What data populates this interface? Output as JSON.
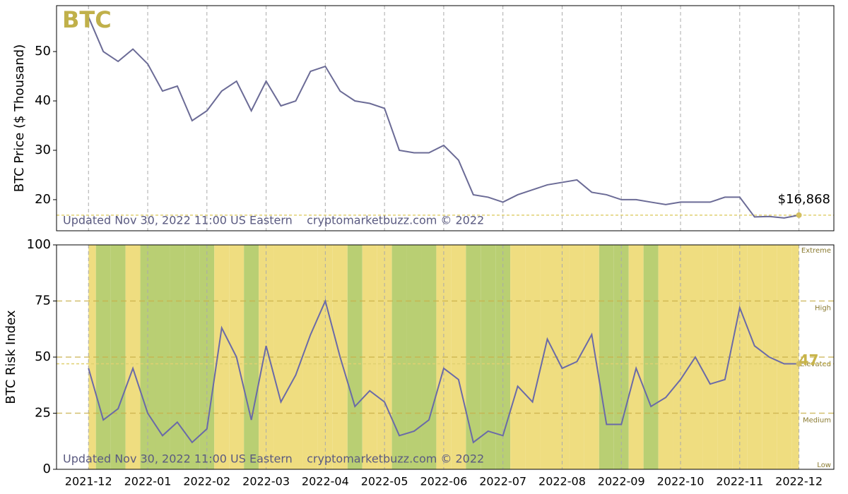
{
  "chart_data": [
    {
      "type": "line",
      "title": "BTC",
      "ylabel": "BTC Price ($ Thousand)",
      "footer": "Updated Nov 30, 2022 11:00 US Eastern    cryptomarketbuzz.com © 2022",
      "x": [
        0,
        0.25,
        0.5,
        0.75,
        1,
        1.25,
        1.5,
        1.75,
        2,
        2.25,
        2.5,
        2.75,
        3,
        3.25,
        3.5,
        3.75,
        4,
        4.25,
        4.5,
        4.75,
        5,
        5.25,
        5.5,
        5.75,
        6,
        6.25,
        6.5,
        6.75,
        7,
        7.25,
        7.5,
        7.75,
        8,
        8.25,
        8.5,
        8.75,
        9,
        9.25,
        9.5,
        9.75,
        10,
        10.25,
        10.5,
        10.75,
        11,
        11.25,
        11.5,
        11.75,
        12
      ],
      "values": [
        57,
        50,
        48,
        50.5,
        47.5,
        42,
        43,
        36,
        38,
        42,
        44,
        38,
        44,
        39,
        40,
        46,
        47,
        42,
        40,
        39.5,
        38.5,
        30,
        29.5,
        29.5,
        31,
        28,
        21,
        20.5,
        19.5,
        21,
        22,
        23,
        23.5,
        24,
        21.5,
        21,
        20,
        20,
        19.5,
        19,
        19.5,
        19.5,
        19.5,
        20.5,
        20.5,
        16.5,
        16.6,
        16.3,
        16.868
      ],
      "color": "#6b6b96",
      "last_label": {
        "value": 16.868,
        "label": "$16,868"
      },
      "xlim": [
        -0.54,
        12.59
      ],
      "ylim": [
        13.7,
        59.3
      ],
      "xticks": [
        0,
        1,
        2,
        3,
        4,
        5,
        6,
        7,
        8,
        9,
        10,
        11,
        12
      ],
      "yticks": [
        20,
        30,
        40,
        50
      ],
      "grid": true
    },
    {
      "type": "risk",
      "ylabel": "BTC Risk Index",
      "footer": "Updated Nov 30, 2022 11:00 US Eastern    cryptomarketbuzz.com © 2022",
      "x": [
        0,
        0.25,
        0.5,
        0.75,
        1,
        1.25,
        1.5,
        1.75,
        2,
        2.25,
        2.5,
        2.75,
        3,
        3.25,
        3.5,
        3.75,
        4,
        4.25,
        4.5,
        4.75,
        5,
        5.25,
        5.5,
        5.75,
        6,
        6.25,
        6.5,
        6.75,
        7,
        7.25,
        7.5,
        7.75,
        8,
        8.25,
        8.5,
        8.75,
        9,
        9.25,
        9.5,
        9.75,
        10,
        10.25,
        10.5,
        10.75,
        11,
        11.25,
        11.5,
        11.75,
        12
      ],
      "values": [
        45,
        22,
        27,
        45,
        25,
        15,
        21,
        12,
        18,
        63,
        50,
        22,
        55,
        30,
        42,
        60,
        75,
        50,
        28,
        35,
        30,
        15,
        17,
        22,
        45,
        40,
        12,
        17,
        15,
        37,
        30,
        58,
        45,
        48,
        60,
        20,
        20,
        45,
        28,
        32,
        40,
        50,
        38,
        40,
        72,
        55,
        50,
        47,
        47
      ],
      "color": "#6a6aa8",
      "band_colors": [
        "#b9cf73",
        "#efdd80"
      ],
      "last_label": {
        "value": 47,
        "label": "47"
      },
      "levels": [
        {
          "value": 100,
          "label": "Extreme"
        },
        {
          "value": 75,
          "label": "High"
        },
        {
          "value": 50,
          "label": "Elevated"
        },
        {
          "value": 25,
          "label": "Medium"
        },
        {
          "value": 0,
          "label": "Low"
        }
      ],
      "xlim": [
        -0.54,
        12.59
      ],
      "ylim": [
        0,
        100
      ],
      "xticks": [
        {
          "value": 0,
          "label": "2021-12"
        },
        {
          "value": 1,
          "label": "2022-01"
        },
        {
          "value": 2,
          "label": "2022-02"
        },
        {
          "value": 3,
          "label": "2022-03"
        },
        {
          "value": 4,
          "label": "2022-04"
        },
        {
          "value": 5,
          "label": "2022-05"
        },
        {
          "value": 6,
          "label": "2022-06"
        },
        {
          "value": 7,
          "label": "2022-07"
        },
        {
          "value": 8,
          "label": "2022-08"
        },
        {
          "value": 9,
          "label": "2022-09"
        },
        {
          "value": 10,
          "label": "2022-10"
        },
        {
          "value": 11,
          "label": "2022-11"
        },
        {
          "value": 12,
          "label": "2022-12"
        }
      ],
      "yticks": [
        0,
        25,
        50,
        75,
        100
      ],
      "grid": true
    }
  ]
}
